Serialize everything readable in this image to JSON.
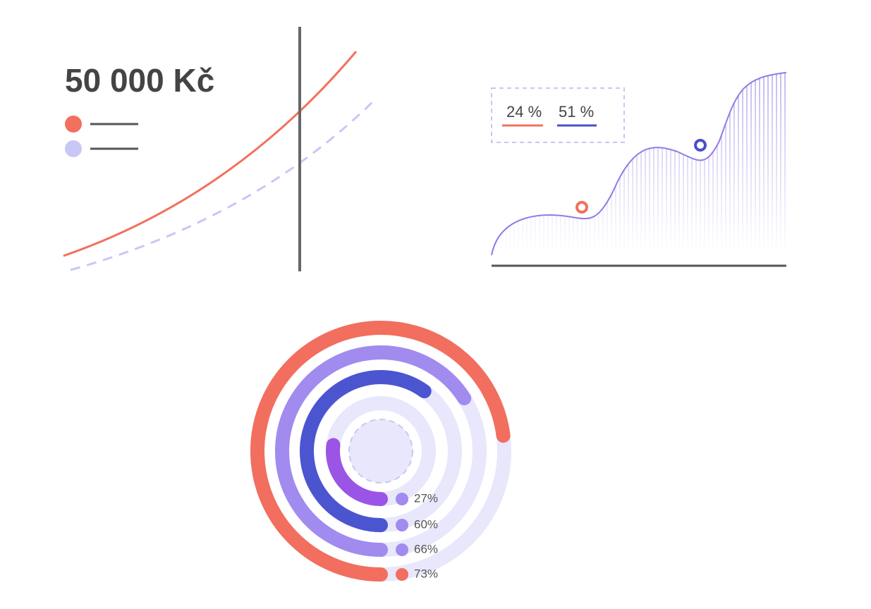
{
  "chart_data": [
    {
      "type": "line",
      "title": "50 000 Kč"
    },
    {
      "type": "area",
      "series": [
        {
          "name": "24 %",
          "color": "#f2705e"
        },
        {
          "name": "51 %",
          "color": "#4a4fc9"
        }
      ]
    },
    {
      "type": "radial-bar",
      "categories": [
        null,
        null,
        null,
        null
      ],
      "values": [
        27,
        60,
        66,
        73
      ],
      "value_labels": [
        "27%",
        "60%",
        "66%",
        "73%"
      ],
      "colors": [
        "#9b55e6",
        "#4c55d0",
        "#a18bef",
        "#f26e5e"
      ],
      "ylim": [
        0,
        100
      ]
    }
  ]
}
